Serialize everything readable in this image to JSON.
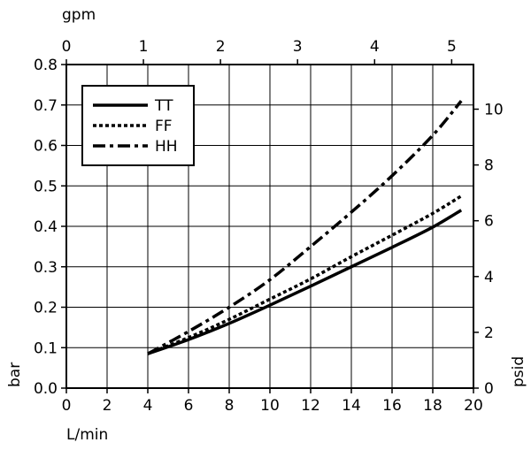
{
  "chart_data": {
    "type": "line",
    "x_bottom": {
      "label": "L/min",
      "range": [
        0,
        20
      ],
      "ticks": [
        0,
        2,
        4,
        6,
        8,
        10,
        12,
        14,
        16,
        18,
        20
      ]
    },
    "x_top": {
      "label": "gpm",
      "range": [
        0,
        5.283
      ],
      "ticks": [
        0,
        1,
        2,
        3,
        4,
        5
      ]
    },
    "y_left": {
      "label": "bar",
      "range": [
        0,
        0.8
      ],
      "ticks": [
        "0.0",
        "0.1",
        "0.2",
        "0.3",
        "0.4",
        "0.5",
        "0.6",
        "0.7",
        "0.8"
      ]
    },
    "y_right": {
      "label": "psid",
      "range": [
        0,
        11.6
      ],
      "ticks": [
        0,
        2,
        4,
        6,
        8,
        10
      ]
    },
    "grid": true,
    "legend": {
      "position": "top-left"
    },
    "series": [
      {
        "name": "TT",
        "style": "solid",
        "x": [
          4,
          6,
          8,
          10,
          12,
          14,
          16,
          18,
          19.4
        ],
        "y": [
          0.085,
          0.12,
          0.16,
          0.205,
          0.252,
          0.3,
          0.348,
          0.398,
          0.44
        ]
      },
      {
        "name": "FF",
        "style": "dotted",
        "x": [
          4,
          6,
          8,
          10,
          12,
          14,
          16,
          18,
          19.4
        ],
        "y": [
          0.085,
          0.125,
          0.17,
          0.22,
          0.27,
          0.325,
          0.378,
          0.432,
          0.475
        ]
      },
      {
        "name": "HH",
        "style": "dashdot",
        "x": [
          4,
          6,
          8,
          10,
          12,
          14,
          16,
          18,
          19.4
        ],
        "y": [
          0.085,
          0.14,
          0.2,
          0.268,
          0.35,
          0.435,
          0.525,
          0.625,
          0.71
        ]
      }
    ]
  }
}
